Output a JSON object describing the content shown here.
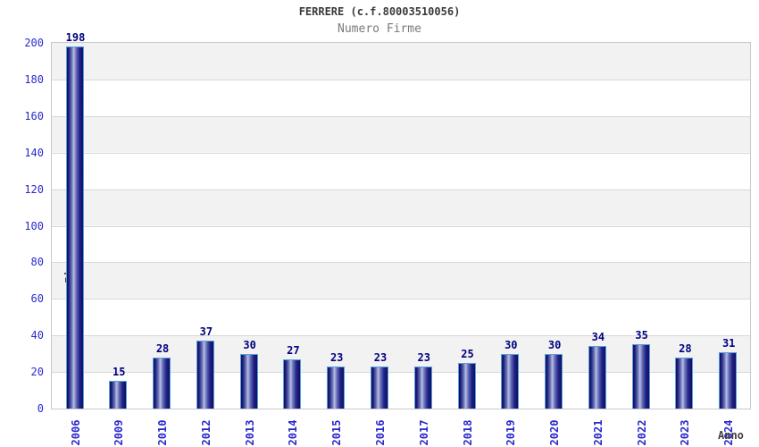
{
  "header": {
    "title": "FERRERE (c.f.80003510056)",
    "subtitle": "Numero Firme"
  },
  "chart_data": {
    "type": "bar",
    "title": "FERRERE (c.f.80003510056)",
    "subtitle": "Numero Firme",
    "xlabel": "Anno",
    "ylabel": "Firme",
    "categories": [
      "2006",
      "2009",
      "2010",
      "2012",
      "2013",
      "2014",
      "2015",
      "2016",
      "2017",
      "2018",
      "2019",
      "2020",
      "2021",
      "2022",
      "2023",
      "2024"
    ],
    "values": [
      198,
      15,
      28,
      37,
      30,
      27,
      23,
      23,
      23,
      25,
      30,
      30,
      34,
      35,
      28,
      31
    ],
    "ylim": [
      0,
      200
    ],
    "ytick_step": 20,
    "grid": "horizontal-bands-alternating",
    "legend": "none",
    "bar_labels_shown": true,
    "colors": {
      "bar_dark": "#0f0f5e",
      "bar_highlight": "#b7c0e6",
      "bar_border": "#56a0dd",
      "tick_label": "#2929cc",
      "value_label": "#000080",
      "axis_title": "#404040",
      "band": "#f2f2f2",
      "gridline": "#d9d9d9",
      "plot_border": "#c9c9c9",
      "title_color": "#3a3a3a",
      "subtitle_color": "#7a7a7a"
    }
  }
}
